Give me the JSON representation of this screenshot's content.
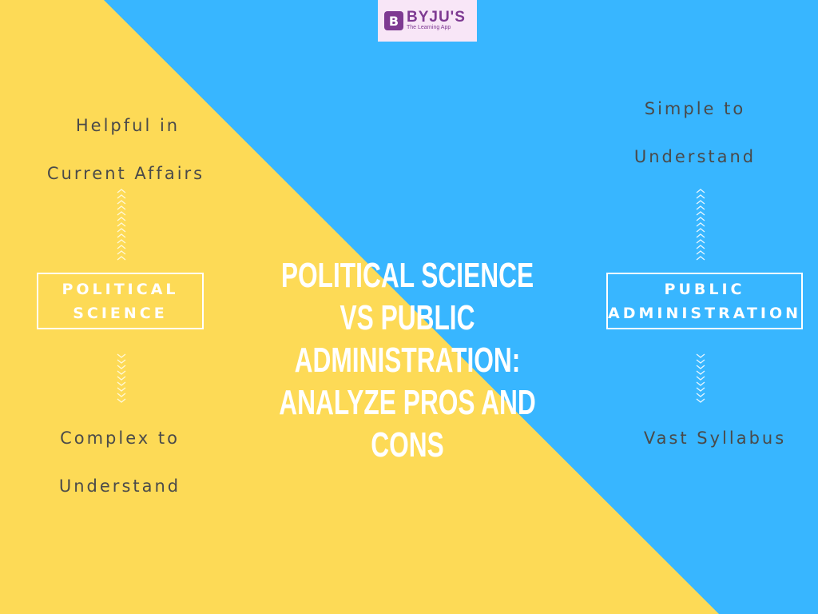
{
  "colors": {
    "yellow": "#fdda56",
    "blue": "#38b6ff",
    "text": "#4a4a4a"
  },
  "logo": {
    "brand": "BYJU'S",
    "tagline": "The Learning App",
    "mark": "B"
  },
  "title": "POLITICAL SCIENCE VS PUBLIC ADMINISTRATION: ANALYZE PROS AND CONS",
  "left": {
    "label_line1": "POLITICAL",
    "label_line2": "SCIENCE",
    "pro_line1": "Helpful in",
    "pro_line2": "Current Affairs",
    "con_line1": "Complex to",
    "con_line2": "Understand"
  },
  "right": {
    "label_line1": "PUBLIC",
    "label_line2": "ADMINISTRATION",
    "pro_line1": "Simple to",
    "pro_line2": "Understand",
    "con_line1": "Vast Syllabus"
  },
  "icons": {
    "up": "chevron-up-stack-icon",
    "down": "chevron-down-stack-icon"
  }
}
